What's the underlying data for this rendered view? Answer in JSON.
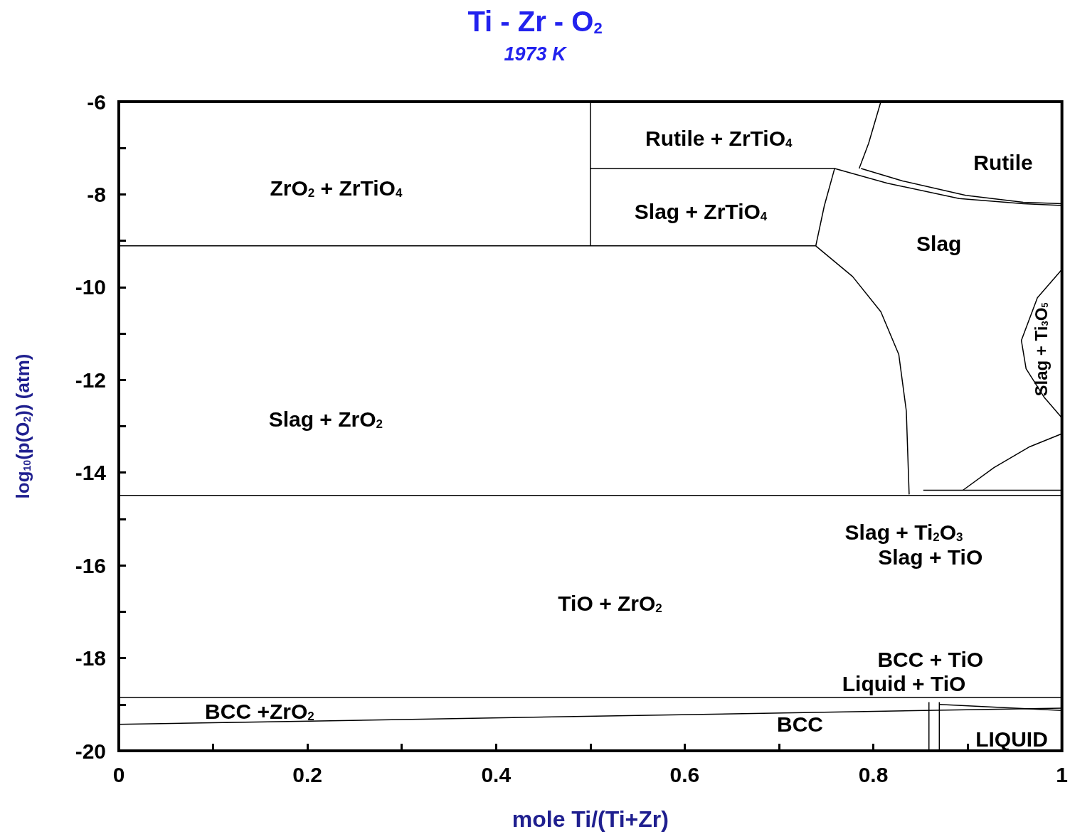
{
  "chart_data": {
    "type": "line",
    "title": "Ti - Zr - O$_{2}$",
    "subtitle": "1973 K",
    "xlabel": "mole Ti/(Ti+Zr)",
    "ylabel": "log$_{10}$(p(O$_{2}$)) (atm)",
    "xlim": [
      0,
      1
    ],
    "ylim": [
      -20,
      -6
    ],
    "xticks": [
      0,
      {
        "value": 0.1,
        "label": null
      },
      0.2,
      {
        "value": 0.3,
        "label": null
      },
      0.4,
      {
        "value": 0.5,
        "label": null
      },
      0.6,
      {
        "value": 0.7,
        "label": null
      },
      0.8,
      {
        "value": 0.9,
        "label": null
      },
      1
    ],
    "yticks": [
      -20,
      {
        "value": -19,
        "label": null
      },
      -18,
      {
        "value": -17,
        "label": null
      },
      -16,
      {
        "value": -15,
        "label": null
      },
      -14,
      {
        "value": -13,
        "label": null
      },
      -12,
      {
        "value": -11,
        "label": null
      },
      -10,
      {
        "value": -9,
        "label": null
      },
      -8,
      {
        "value": -7,
        "label": null
      },
      -6
    ],
    "marker": "none",
    "line_style": "solid",
    "grid": false,
    "series": [
      {
        "color": "#000000",
        "x": [
          0,
          0.739
        ],
        "values": [
          -9.11,
          -9.11
        ]
      },
      {
        "color": "#000000",
        "x": [
          0.5,
          0.5
        ],
        "values": [
          -6,
          -9.11
        ]
      },
      {
        "color": "#000000",
        "x": [
          0.5,
          0.759,
          0.815,
          0.891,
          0.959,
          1
        ],
        "values": [
          -7.44,
          -7.44,
          -7.76,
          -8.09,
          -8.2,
          -8.24
        ]
      },
      {
        "color": "#000000",
        "x": [
          0.739,
          0.748,
          0.759
        ],
        "values": [
          -9.11,
          -8.25,
          -7.44
        ]
      },
      {
        "color": "#000000",
        "x": [
          0.785,
          0.795,
          0.808
        ],
        "values": [
          -7.44,
          -6.9,
          -6
        ]
      },
      {
        "color": "#000000",
        "x": [
          0.787,
          0.831,
          0.898,
          0.959,
          1
        ],
        "values": [
          -7.44,
          -7.71,
          -8.02,
          -8.17,
          -8.2
        ]
      },
      {
        "color": "#000000",
        "x": [
          0.739,
          0.778,
          0.808,
          0.827,
          0.835,
          0.838
        ],
        "values": [
          -9.11,
          -9.77,
          -10.53,
          -11.45,
          -12.67,
          -14.47
        ]
      },
      {
        "color": "#000000",
        "x": [
          0,
          1
        ],
        "values": [
          -14.49,
          -14.49
        ]
      },
      {
        "color": "#000000",
        "x": [
          0.853,
          1
        ],
        "values": [
          -14.38,
          -14.38
        ]
      },
      {
        "color": "#000000",
        "x": [
          0.895,
          0.928,
          0.966,
          1
        ],
        "values": [
          -14.38,
          -13.89,
          -13.44,
          -13.16
        ]
      },
      {
        "color": "#000000",
        "x": [
          1,
          0.974,
          0.957,
          0.962,
          0.981,
          1
        ],
        "values": [
          -9.62,
          -10.23,
          -11.15,
          -11.76,
          -12.37,
          -12.82
        ]
      },
      {
        "color": "#000000",
        "x": [
          0,
          1
        ],
        "values": [
          -18.85,
          -18.85
        ]
      },
      {
        "color": "#000000",
        "x": [
          0,
          1
        ],
        "values": [
          -19.43,
          -19.08
        ]
      },
      {
        "color": "#000000",
        "x": [
          0.87,
          1
        ],
        "values": [
          -19.0,
          -19.13
        ]
      },
      {
        "color": "#000000",
        "x": [
          0.859,
          0.859
        ],
        "values": [
          -18.95,
          -20
        ]
      },
      {
        "color": "#000000",
        "x": [
          0.87,
          0.87
        ],
        "values": [
          -18.95,
          -20
        ]
      }
    ],
    "annotations": [
      "ZrO$_{2}$ + ZrTiO$_{4}$",
      "Rutile + ZrTiO$_{4}$",
      "Rutile",
      "Slag + ZrTiO$_{4}$",
      "Slag",
      "Slag + Ti$_{3}$O$_{5}$",
      "Slag + ZrO$_{2}$",
      "Slag + Ti$_{2}$O$_{3}$",
      "Slag + TiO",
      "TiO + ZrO$_{2}$",
      "BCC + TiO",
      "Liquid + TiO",
      "BCC +ZrO$_{2}$",
      "BCC",
      "LIQUID"
    ]
  }
}
